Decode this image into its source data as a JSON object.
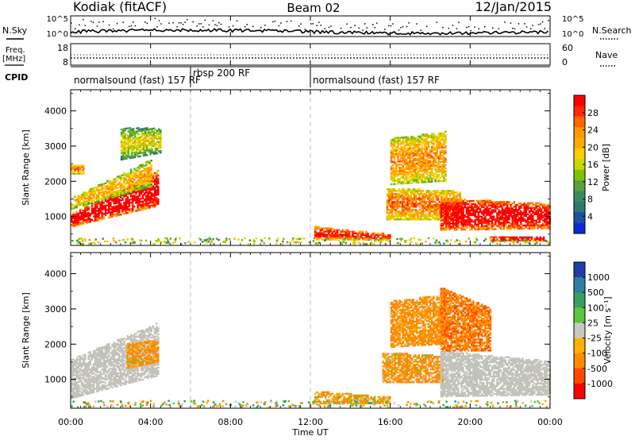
{
  "header": {
    "title_left": "Kodiak (fitACF)",
    "title_center": "Beam 02",
    "title_right": "12/Jan/2015"
  },
  "small_panels": {
    "nsky_label": "N.Sky",
    "nsearch_label": "N.Search",
    "freq_label_1": "Freq.",
    "freq_label_2": "[MHz]",
    "nave_label": "Nave",
    "cpid_label": "CPID",
    "noise_left_ticks": [
      "10^5",
      "10^0"
    ],
    "noise_right_ticks": [
      "10^5",
      "10^0"
    ],
    "freq_left_ticks": [
      "18",
      "8"
    ],
    "freq_right_ticks": [
      "60",
      "0"
    ]
  },
  "cpid": [
    {
      "label": "normalsound (fast) 157 RF",
      "start_hour": 0,
      "end_hour": 6
    },
    {
      "label": "rbsp 200 RF",
      "start_hour": 6,
      "end_hour": 12
    },
    {
      "label": "normalsound (fast) 157 RF",
      "start_hour": 12,
      "end_hour": 24
    }
  ],
  "axes": {
    "xlabel": "Time UT",
    "ylabel": "Slant Range [km]",
    "x_ticks": [
      "00:00",
      "04:00",
      "08:00",
      "12:00",
      "16:00",
      "20:00",
      "00:00"
    ],
    "y_ticks": [
      "1000",
      "2000",
      "3000",
      "4000"
    ]
  },
  "power_colorbar": {
    "label": "Power [dB]",
    "ticks": [
      "28",
      "24",
      "20",
      "16",
      "12",
      "8",
      "4"
    ],
    "colors": [
      "#ff0000",
      "#ff2a00",
      "#ff6600",
      "#ff9900",
      "#ffaa00",
      "#ffcc00",
      "#c8d800",
      "#7fc000",
      "#5aa040",
      "#3c8c60",
      "#2e7a70",
      "#1e4ea8",
      "#0a2bd8"
    ]
  },
  "velocity_colorbar": {
    "label": "Velocity [m s⁻¹]",
    "ticks": [
      "1000",
      "500",
      "100",
      "25",
      "-25",
      "-100",
      "-500",
      "-1000"
    ],
    "colors": [
      "#1e3fa8",
      "#2f7fa0",
      "#37a060",
      "#5ec43a",
      "#c8c8c0",
      "#ffb000",
      "#ff8a00",
      "#ff4a00",
      "#ff0000"
    ],
    "ground_scatter_color": "#c3c3bb"
  },
  "chart_data": [
    {
      "type": "heatmap",
      "title": "Power",
      "xlabel": "Time UT",
      "ylabel": "Slant Range [km]",
      "xlim": [
        0,
        24
      ],
      "ylim": [
        180,
        4600
      ],
      "clim": [
        0,
        30
      ],
      "clabel": "Power [dB]",
      "regions": [
        {
          "t": [
            0.0,
            4.4
          ],
          "r0": [
            700,
            1300
          ],
          "r1": [
            1050,
            2300
          ],
          "value": 26
        },
        {
          "t": [
            0.0,
            4.0
          ],
          "r0": [
            1200,
            1850
          ],
          "r1": [
            1500,
            2600
          ],
          "value": 13
        },
        {
          "t": [
            0.0,
            0.6
          ],
          "r0": [
            2200,
            2200
          ],
          "r1": [
            2450,
            2450
          ],
          "value": 17
        },
        {
          "t": [
            2.5,
            4.5
          ],
          "r0": [
            2600,
            2800
          ],
          "r1": [
            3500,
            3500
          ],
          "value": 9
        },
        {
          "t": [
            12.2,
            16.0
          ],
          "r0": [
            330,
            320
          ],
          "r1": [
            700,
            480
          ],
          "value": 22
        },
        {
          "t": [
            15.8,
            19.5
          ],
          "r0": [
            900,
            900
          ],
          "r1": [
            1800,
            1700
          ],
          "value": 17
        },
        {
          "t": [
            16.0,
            18.8
          ],
          "r0": [
            1900,
            2000
          ],
          "r1": [
            3200,
            3400
          ],
          "value": 15
        },
        {
          "t": [
            18.5,
            24.0
          ],
          "r0": [
            600,
            650
          ],
          "r1": [
            1500,
            1350
          ],
          "value": 25
        },
        {
          "t": [
            21.0,
            23.8
          ],
          "r0": [
            300,
            300
          ],
          "r1": [
            420,
            420
          ],
          "value": 28
        }
      ]
    },
    {
      "type": "heatmap",
      "title": "Velocity",
      "xlabel": "Time UT",
      "ylabel": "Slant Range [km]",
      "xlim": [
        0,
        24
      ],
      "ylim": [
        180,
        4600
      ],
      "clim": [
        -1000,
        1000
      ],
      "clabel": "Velocity [m s⁻¹]",
      "regions": [
        {
          "t": [
            0.0,
            4.4
          ],
          "r0": [
            450,
            1100
          ],
          "r1": [
            1550,
            2600
          ],
          "value": 0,
          "ground_scatter": true
        },
        {
          "t": [
            2.8,
            4.4
          ],
          "r0": [
            1300,
            1500
          ],
          "r1": [
            2000,
            2100
          ],
          "value": -200
        },
        {
          "t": [
            12.2,
            16.0
          ],
          "r0": [
            300,
            300
          ],
          "r1": [
            650,
            480
          ],
          "value": -150
        },
        {
          "t": [
            15.6,
            18.6
          ],
          "r0": [
            900,
            900
          ],
          "r1": [
            1750,
            1650
          ],
          "value": -200
        },
        {
          "t": [
            16.0,
            18.8
          ],
          "r0": [
            1900,
            2000
          ],
          "r1": [
            3200,
            3400
          ],
          "value": -250
        },
        {
          "t": [
            18.5,
            24.0
          ],
          "r0": [
            500,
            550
          ],
          "r1": [
            1800,
            1500
          ],
          "value": 0,
          "ground_scatter": true
        },
        {
          "t": [
            18.5,
            21.0
          ],
          "r0": [
            1800,
            1800
          ],
          "r1": [
            3600,
            3000
          ],
          "value": -400
        }
      ]
    }
  ]
}
